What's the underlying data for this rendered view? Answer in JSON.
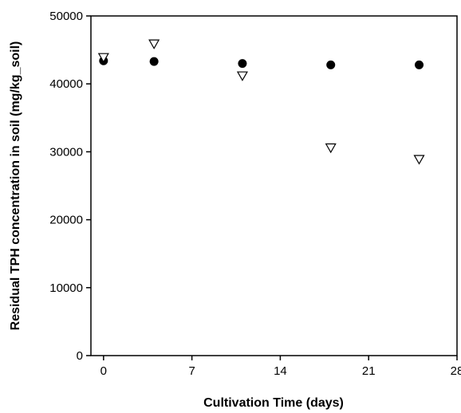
{
  "chart_data": {
    "type": "scatter",
    "title": "",
    "xlabel": "Cultivation Time (days)",
    "ylabel": "Residual TPH concentration in soil (mg/kg_soil)",
    "xlim": [
      -1,
      28
    ],
    "ylim": [
      0,
      50000
    ],
    "x_ticks": [
      0,
      7,
      14,
      21,
      28
    ],
    "y_ticks": [
      0,
      10000,
      20000,
      30000,
      40000,
      50000
    ],
    "x_tick_labels": [
      "0",
      "7",
      "14",
      "21",
      "28"
    ],
    "y_tick_labels": [
      "0",
      "10000",
      "20000",
      "30000",
      "40000",
      "50000"
    ],
    "grid": false,
    "legend": "none",
    "series": [
      {
        "marker": "filled-circle",
        "color": "#000000",
        "x": [
          0,
          4,
          11,
          18,
          25
        ],
        "y": [
          43400,
          43300,
          43000,
          42800,
          42800
        ]
      },
      {
        "marker": "open-down-triangle",
        "color": "#000000",
        "x": [
          0,
          4,
          11,
          18,
          25
        ],
        "y": [
          43900,
          45900,
          41200,
          30600,
          28900
        ]
      }
    ]
  }
}
